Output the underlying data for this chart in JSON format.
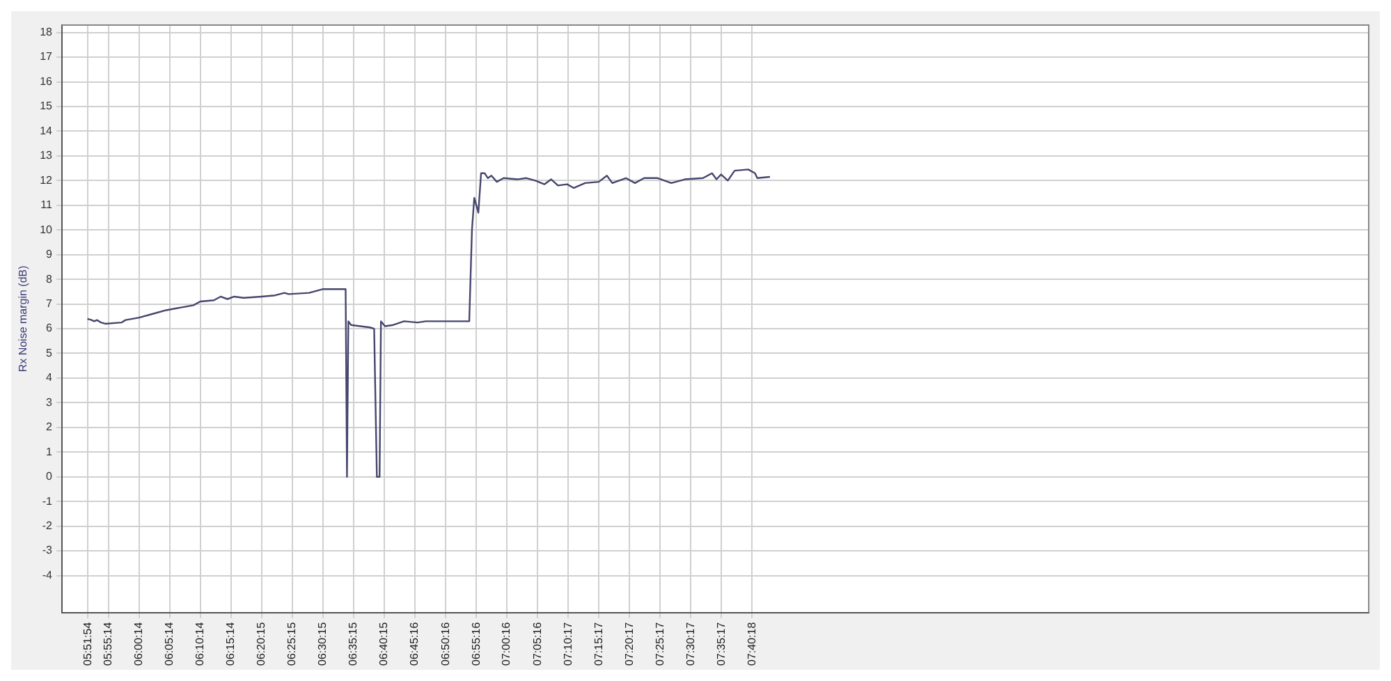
{
  "chart_data": {
    "type": "line",
    "ylabel": "Rx Noise margin (dB)",
    "x": [
      5.8635,
      5.8745,
      5.8819,
      5.8893,
      5.9004,
      5.9115,
      5.9559,
      5.9669,
      6.0039,
      6.0409,
      6.0778,
      6.1148,
      6.1517,
      6.1702,
      6.2072,
      6.2257,
      6.2441,
      6.2626,
      6.2885,
      6.3365,
      6.3735,
      6.3994,
      6.4105,
      6.4659,
      6.5029,
      6.5657,
      6.5694,
      6.5731,
      6.5805,
      6.6322,
      6.6433,
      6.6507,
      6.6581,
      6.6618,
      6.6729,
      6.6951,
      6.7246,
      6.7616,
      6.7838,
      6.902,
      6.9094,
      6.9157,
      6.9268,
      6.9342,
      6.9438,
      6.9527,
      6.9623,
      6.977,
      6.9955,
      7.0325,
      7.0573,
      7.082,
      7.1064,
      7.1249,
      7.1434,
      7.1681,
      7.1866,
      7.2173,
      7.2543,
      7.2765,
      7.2912,
      7.3282,
      7.3529,
      7.3777,
      7.4147,
      7.4517,
      7.4886,
      7.5378,
      7.5625,
      7.5747,
      7.5869,
      7.6054,
      7.6239,
      7.6608,
      7.6794,
      7.6856,
      7.72
    ],
    "series": [
      {
        "color": "#45456e",
        "values": [
          6.4,
          6.35,
          6.3,
          6.35,
          6.25,
          6.2,
          6.25,
          6.35,
          6.45,
          6.6,
          6.75,
          6.85,
          6.95,
          7.1,
          7.15,
          7.3,
          7.2,
          7.3,
          7.25,
          7.3,
          7.35,
          7.45,
          7.4,
          7.45,
          7.6,
          7.6,
          0,
          6.3,
          6.15,
          6.05,
          6,
          0,
          0,
          6.3,
          6.1,
          6.15,
          6.3,
          6.25,
          6.3,
          6.3,
          10,
          11.3,
          10.7,
          12.3,
          12.3,
          12.1,
          12.2,
          11.95,
          12.1,
          12.05,
          12.1,
          12,
          11.85,
          12.05,
          11.8,
          11.85,
          11.7,
          11.9,
          11.95,
          12.2,
          11.9,
          12.1,
          11.9,
          12.1,
          12.1,
          11.9,
          12.05,
          12.1,
          12.3,
          12.05,
          12.25,
          12,
          12.4,
          12.45,
          12.3,
          12.1,
          12.15
        ]
      }
    ],
    "xlim": [
      5.794,
      9.349
    ],
    "xticks": [
      {
        "value": 5.865,
        "label": "05:51:54"
      },
      {
        "value": 5.9206,
        "label": "05:55:14"
      },
      {
        "value": 6.0039,
        "label": "06:00:14"
      },
      {
        "value": 6.0872,
        "label": "06:05:14"
      },
      {
        "value": 6.1706,
        "label": "06:10:14"
      },
      {
        "value": 6.2539,
        "label": "06:15:14"
      },
      {
        "value": 6.3375,
        "label": "06:20:15"
      },
      {
        "value": 6.4208,
        "label": "06:25:15"
      },
      {
        "value": 6.5042,
        "label": "06:30:15"
      },
      {
        "value": 6.5875,
        "label": "06:35:15"
      },
      {
        "value": 6.6708,
        "label": "06:40:15"
      },
      {
        "value": 6.7544,
        "label": "06:45:16"
      },
      {
        "value": 6.8378,
        "label": "06:50:16"
      },
      {
        "value": 6.9211,
        "label": "06:55:16"
      },
      {
        "value": 7.0044,
        "label": "07:00:16"
      },
      {
        "value": 7.0878,
        "label": "07:05:16"
      },
      {
        "value": 7.1714,
        "label": "07:10:17"
      },
      {
        "value": 7.2547,
        "label": "07:15:17"
      },
      {
        "value": 7.3381,
        "label": "07:20:17"
      },
      {
        "value": 7.4214,
        "label": "07:25:17"
      },
      {
        "value": 7.5047,
        "label": "07:30:17"
      },
      {
        "value": 7.5881,
        "label": "07:35:17"
      },
      {
        "value": 7.6717,
        "label": "07:40:18"
      }
    ],
    "ylim": [
      -5.5,
      18.3
    ],
    "yticks": [
      -4,
      -3,
      -2,
      -1,
      0,
      1,
      2,
      3,
      4,
      5,
      6,
      7,
      8,
      9,
      10,
      11,
      12,
      13,
      14,
      15,
      16,
      17,
      18
    ],
    "grid": true,
    "marker": "none",
    "line_style": "solid",
    "legend": false
  }
}
